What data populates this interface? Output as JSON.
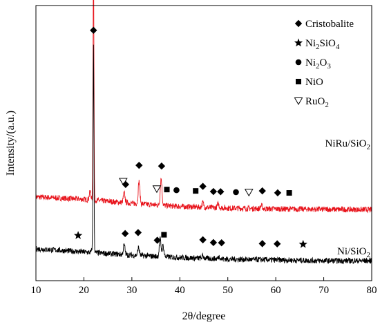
{
  "chart_data": {
    "type": "line",
    "xlabel": "2θ/degree",
    "ylabel": "Intensity/(a.u.)",
    "xlim": [
      10,
      80
    ],
    "xticks": [
      10,
      20,
      30,
      40,
      50,
      60,
      70,
      80
    ],
    "yticks_shown": false,
    "legend": {
      "placement": "top-right",
      "entries": [
        {
          "marker": "diamond",
          "label": "Cristobalite"
        },
        {
          "marker": "star",
          "label": "Ni",
          "sub1": "2",
          "mid": "SiO",
          "sub2": "4"
        },
        {
          "marker": "circle",
          "label": "Ni",
          "sub1": "2",
          "mid": "O",
          "sub2": "3"
        },
        {
          "marker": "square",
          "label": "NiO"
        },
        {
          "marker": "triangle-down",
          "label": "RuO",
          "sub1": "2"
        }
      ]
    },
    "series": [
      {
        "name": "NiRu/SiO2",
        "label_main": "NiRu/SiO",
        "label_sub": "2",
        "color": "#e8141c",
        "baseline_y": [
          [
            10,
            0.8
          ],
          [
            20,
            0.77
          ],
          [
            30,
            0.72
          ],
          [
            40,
            0.68
          ],
          [
            50,
            0.66
          ],
          [
            60,
            0.65
          ],
          [
            70,
            0.645
          ],
          [
            80,
            0.64
          ]
        ],
        "peaks": [
          [
            21.3,
            0.1
          ],
          [
            22.0,
            3.05
          ],
          [
            28.4,
            0.12
          ],
          [
            31.5,
            0.28
          ],
          [
            36.1,
            0.34
          ],
          [
            44.8,
            0.06
          ],
          [
            48.0,
            0.05
          ],
          [
            57.0,
            0.04
          ]
        ],
        "markers": [
          {
            "type": "diamond",
            "x": 22.0
          },
          {
            "type": "triangle-down",
            "x": 28.2
          },
          {
            "type": "diamond",
            "x": 28.7
          },
          {
            "type": "diamond",
            "x": 31.5
          },
          {
            "type": "triangle-down",
            "x": 35.2
          },
          {
            "type": "diamond",
            "x": 36.2
          },
          {
            "type": "square",
            "x": 37.3
          },
          {
            "type": "circle",
            "x": 39.3
          },
          {
            "type": "square",
            "x": 43.3
          },
          {
            "type": "diamond",
            "x": 44.8
          },
          {
            "type": "diamond",
            "x": 47.0
          },
          {
            "type": "diamond",
            "x": 48.5
          },
          {
            "type": "circle",
            "x": 51.7
          },
          {
            "type": "triangle-down",
            "x": 54.4
          },
          {
            "type": "diamond",
            "x": 57.2
          },
          {
            "type": "diamond",
            "x": 60.4
          },
          {
            "type": "square",
            "x": 62.8
          }
        ]
      },
      {
        "name": "Ni/SiO2",
        "label_main": "Ni/SiO",
        "label_sub": "2",
        "color": "#000000",
        "baseline_y": [
          [
            10,
            0.15
          ],
          [
            20,
            0.11
          ],
          [
            30,
            0.07
          ],
          [
            40,
            0.04
          ],
          [
            50,
            0.02
          ],
          [
            60,
            0.01
          ],
          [
            70,
            0.0
          ],
          [
            80,
            0.0
          ]
        ],
        "peaks": [
          [
            21.9,
            0.1
          ],
          [
            22.0,
            2.5
          ],
          [
            28.4,
            0.12
          ],
          [
            31.4,
            0.1
          ],
          [
            35.9,
            0.22
          ],
          [
            36.5,
            0.14
          ],
          [
            44.8,
            0.03
          ],
          [
            48.2,
            0.03
          ]
        ],
        "markers": [
          {
            "type": "star",
            "x": 18.8
          },
          {
            "type": "diamond",
            "x": 22.0
          },
          {
            "type": "diamond",
            "x": 28.6
          },
          {
            "type": "diamond",
            "x": 31.3
          },
          {
            "type": "diamond",
            "x": 35.3
          },
          {
            "type": "square",
            "x": 36.7
          },
          {
            "type": "diamond",
            "x": 44.8
          },
          {
            "type": "diamond",
            "x": 47.0
          },
          {
            "type": "diamond",
            "x": 48.7
          },
          {
            "type": "diamond",
            "x": 57.2
          },
          {
            "type": "diamond",
            "x": 60.3
          },
          {
            "type": "star",
            "x": 65.7
          }
        ]
      }
    ]
  }
}
